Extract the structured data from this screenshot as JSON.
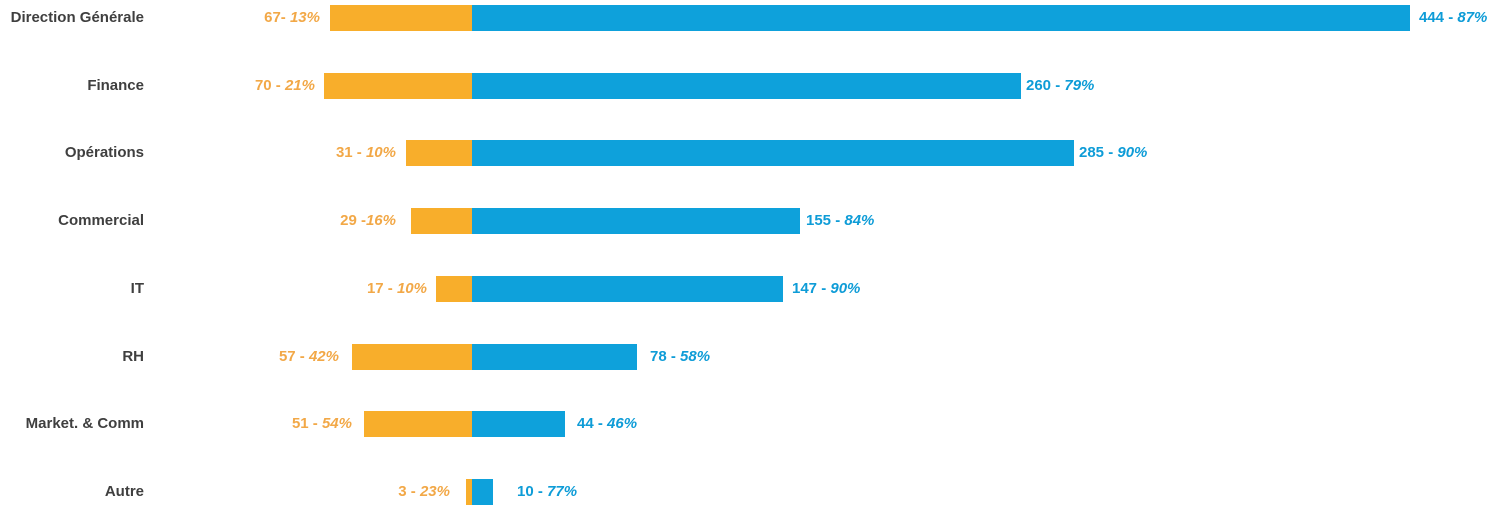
{
  "chart_data": {
    "type": "bar",
    "variant": "diverging-horizontal",
    "title": "",
    "grid": false,
    "legend": "none",
    "categories": [
      "Direction Générale",
      "Finance",
      "Opérations",
      "Commercial",
      "IT",
      "RH",
      "Market. & Comm",
      "Autre"
    ],
    "series": [
      {
        "name": "orange-left",
        "color": "#F8AE2B",
        "values": [
          67,
          70,
          31,
          29,
          17,
          57,
          51,
          3
        ],
        "percent": [
          13,
          21,
          10,
          16,
          10,
          42,
          54,
          23
        ]
      },
      {
        "name": "blue-right",
        "color": "#0EA1DB",
        "values": [
          444,
          260,
          285,
          155,
          147,
          78,
          44,
          10
        ],
        "percent": [
          87,
          79,
          90,
          84,
          90,
          58,
          46,
          77
        ]
      }
    ]
  },
  "rows": [
    {
      "category": "Direction Générale",
      "left_value": "67- ",
      "left_pct": "13%",
      "right_value": "444 - ",
      "right_pct": "87%"
    },
    {
      "category": "Finance",
      "left_value": "70 - ",
      "left_pct": "21%",
      "right_value": "260 - ",
      "right_pct": "79%"
    },
    {
      "category": "Opérations",
      "left_value": "31 - ",
      "left_pct": "10%",
      "right_value": "285 - ",
      "right_pct": "90%"
    },
    {
      "category": "Commercial",
      "left_value": "29 -",
      "left_pct": "16%",
      "right_value": "155 - ",
      "right_pct": "84%"
    },
    {
      "category": "IT",
      "left_value": "17 - ",
      "left_pct": "10%",
      "right_value": "147 - ",
      "right_pct": "90%"
    },
    {
      "category": "RH",
      "left_value": "57 - ",
      "left_pct": "42%",
      "right_value": "78 - ",
      "right_pct": "58%"
    },
    {
      "category": "Market. & Comm",
      "left_value": "51 - ",
      "left_pct": "54%",
      "right_value": "44 - ",
      "right_pct": "46%"
    },
    {
      "category": "Autre",
      "left_value": "3 - ",
      "left_pct": "23%",
      "right_value": "10 - ",
      "right_pct": "77%"
    }
  ],
  "colors": {
    "orange_bar": "#F8AE2B",
    "orange_text": "#F2A847",
    "blue_bar": "#0EA1DB",
    "blue_text": "#0E9CD7",
    "category_text": "#3F3F3F",
    "background": "#FFFFFF"
  }
}
